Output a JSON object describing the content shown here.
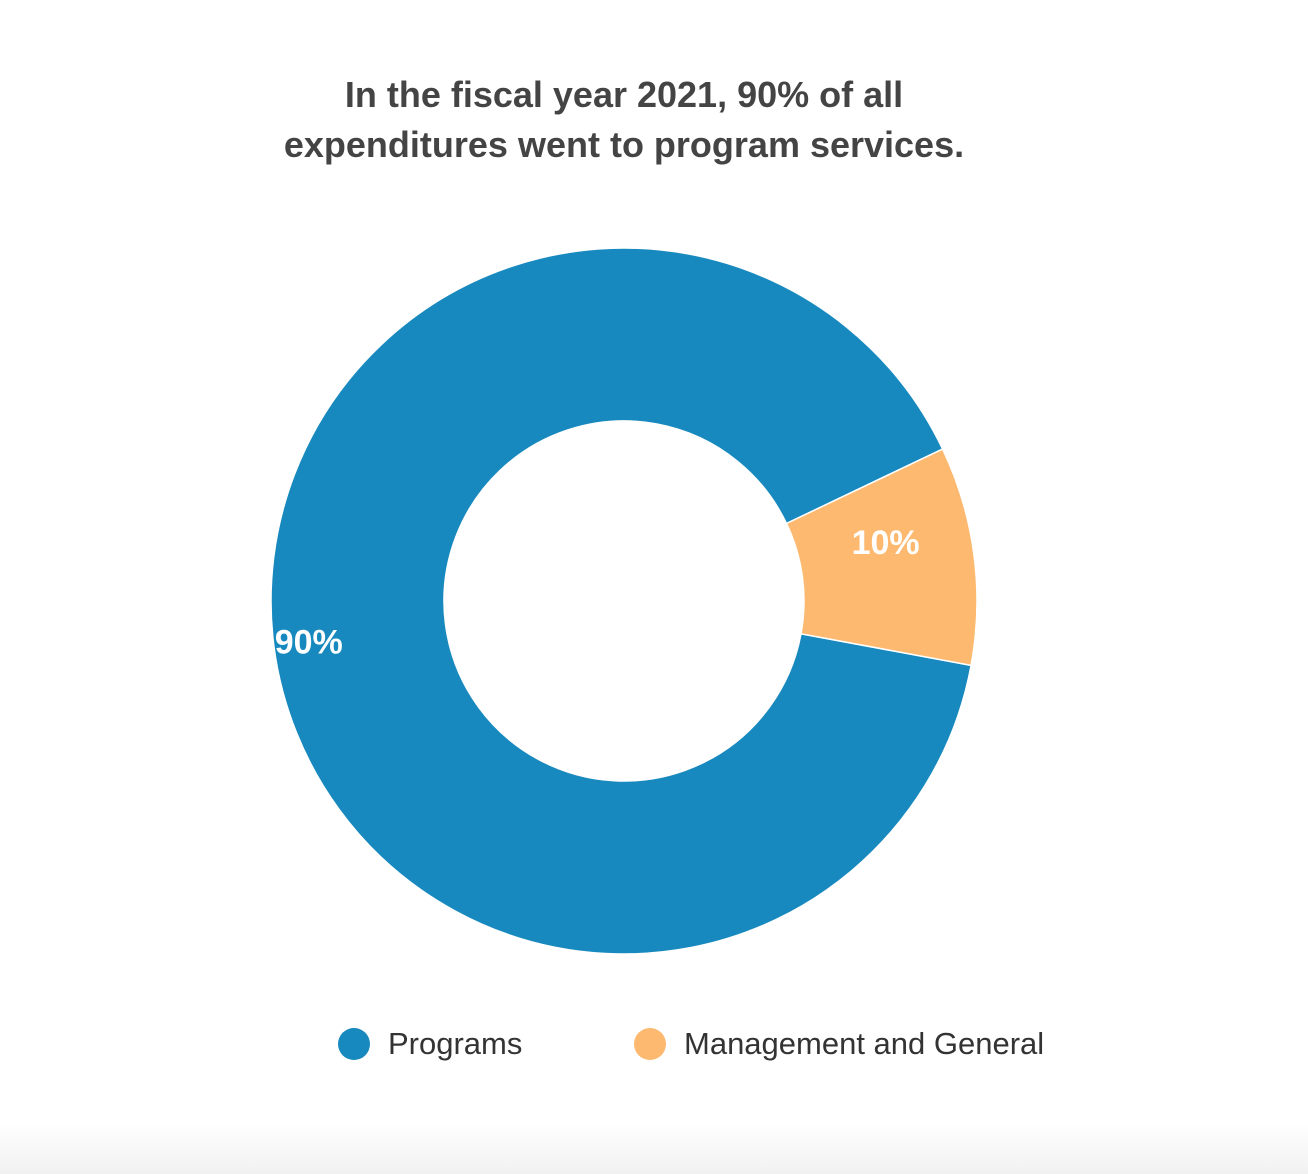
{
  "chart_data": {
    "type": "pie",
    "variant": "donut",
    "title": "In the fiscal year 2021, 90% of all expenditures went to program services.",
    "categories": [
      "Programs",
      "Management and General"
    ],
    "values": [
      90,
      10
    ],
    "data_labels": [
      "90%",
      "10%"
    ],
    "colors": [
      "#1789be",
      "#fdb96f"
    ],
    "legend": {
      "position": "bottom",
      "entries": [
        "Programs",
        "Management and General"
      ]
    }
  }
}
